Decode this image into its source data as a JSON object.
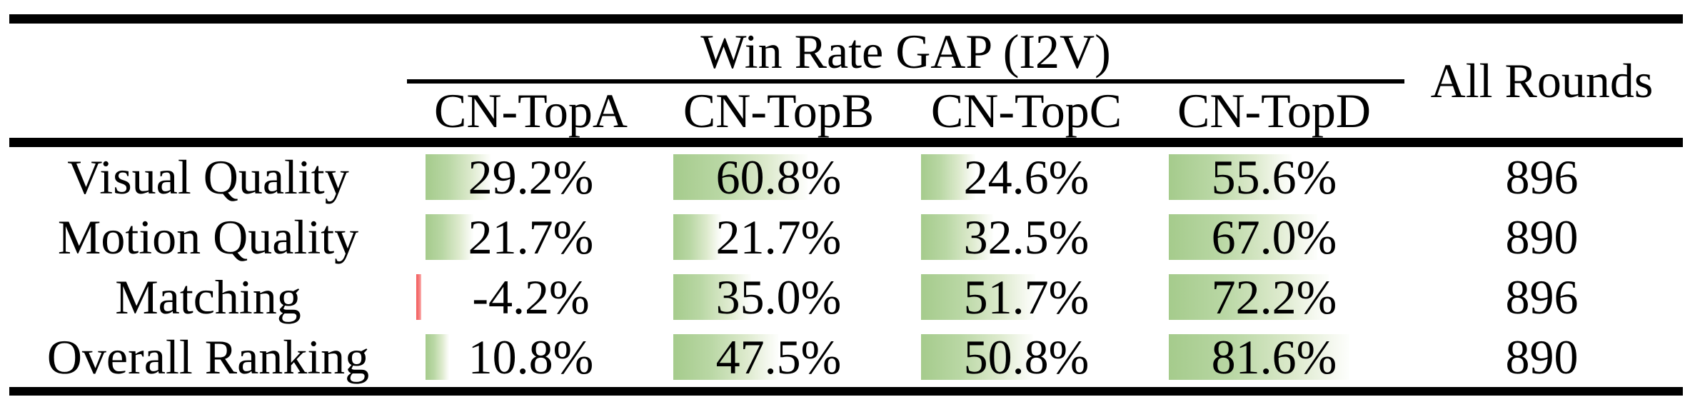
{
  "table": {
    "group_header": "Win Rate GAP (I2V)",
    "all_rounds_header": "All Rounds",
    "columns": [
      "CN-TopA",
      "CN-TopB",
      "CN-TopC",
      "CN-TopD"
    ],
    "rows": [
      {
        "label": "Visual Quality",
        "values": [
          "29.2%",
          "60.8%",
          "24.6%",
          "55.6%"
        ],
        "rounds": "896"
      },
      {
        "label": "Motion Quality",
        "values": [
          "21.7%",
          "21.7%",
          "32.5%",
          "67.0%"
        ],
        "rounds": "890"
      },
      {
        "label": "Matching",
        "values": [
          "-4.2%",
          "35.0%",
          "51.7%",
          "72.2%"
        ],
        "rounds": "896"
      },
      {
        "label": "Overall Ranking",
        "values": [
          "10.8%",
          "47.5%",
          "50.8%",
          "81.6%"
        ],
        "rounds": "890"
      }
    ],
    "colors": {
      "positive_bar_green": "#a5cb8c",
      "negative_bar_red": "#f35b5b",
      "rule_black": "#000000",
      "text_black": "#000000",
      "background_white": "#ffffff"
    }
  }
}
